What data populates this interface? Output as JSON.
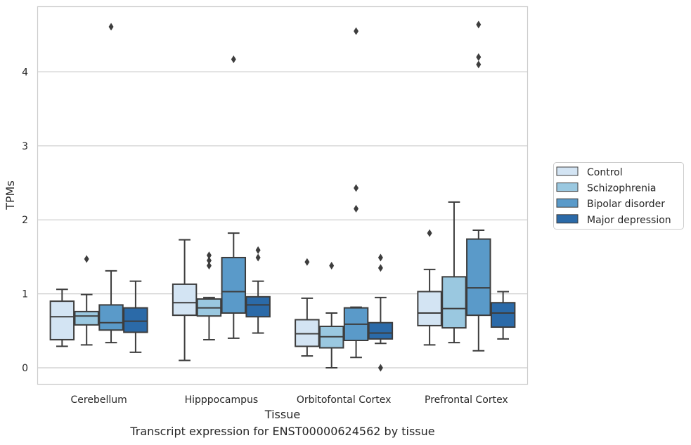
{
  "chart_data": {
    "type": "box",
    "title": "",
    "caption": "Transcript expression for ENST00000624562 by tissue",
    "xlabel": "Tissue",
    "ylabel": "TPMs",
    "ylim": [
      -0.22,
      4.9
    ],
    "yticks": [
      0,
      1,
      2,
      3,
      4
    ],
    "grid": "horizontal",
    "legend_position": "right",
    "categories": [
      "Cerebellum",
      "Hipppocampus",
      "Orbitofontal Cortex",
      "Prefrontal Cortex"
    ],
    "series": [
      {
        "name": "Control",
        "color": "#d3e4f3",
        "boxes": [
          {
            "whislo": 0.29,
            "q1": 0.38,
            "med": 0.69,
            "q3": 0.9,
            "whishi": 1.06,
            "fliers": []
          },
          {
            "whislo": 0.1,
            "q1": 0.71,
            "med": 0.88,
            "q3": 1.13,
            "whishi": 1.73,
            "fliers": []
          },
          {
            "whislo": 0.16,
            "q1": 0.29,
            "med": 0.46,
            "q3": 0.65,
            "whishi": 0.94,
            "fliers": [
              1.43
            ]
          },
          {
            "whislo": 0.31,
            "q1": 0.57,
            "med": 0.74,
            "q3": 1.03,
            "whishi": 1.33,
            "fliers": [
              1.82
            ]
          }
        ]
      },
      {
        "name": "Schizophrenia",
        "color": "#9ac8e0",
        "boxes": [
          {
            "whislo": 0.31,
            "q1": 0.58,
            "med": 0.7,
            "q3": 0.76,
            "whishi": 0.99,
            "fliers": [
              1.47
            ]
          },
          {
            "whislo": 0.38,
            "q1": 0.7,
            "med": 0.81,
            "q3": 0.93,
            "whishi": 0.95,
            "fliers": [
              1.38,
              1.45,
              1.52
            ]
          },
          {
            "whislo": 0.0,
            "q1": 0.27,
            "med": 0.42,
            "q3": 0.56,
            "whishi": 0.74,
            "fliers": [
              1.38
            ]
          },
          {
            "whislo": 0.34,
            "q1": 0.54,
            "med": 0.8,
            "q3": 1.23,
            "whishi": 2.24,
            "fliers": []
          }
        ]
      },
      {
        "name": "Bipolar disorder",
        "color": "#5a9ac9",
        "boxes": [
          {
            "whislo": 0.34,
            "q1": 0.51,
            "med": 0.61,
            "q3": 0.85,
            "whishi": 1.31,
            "fliers": [
              4.61
            ]
          },
          {
            "whislo": 0.4,
            "q1": 0.74,
            "med": 1.03,
            "q3": 1.49,
            "whishi": 1.82,
            "fliers": [
              4.17
            ]
          },
          {
            "whislo": 0.14,
            "q1": 0.37,
            "med": 0.59,
            "q3": 0.81,
            "whishi": 0.82,
            "fliers": [
              2.15,
              2.43,
              4.55
            ]
          },
          {
            "whislo": 0.23,
            "q1": 0.71,
            "med": 1.08,
            "q3": 1.74,
            "whishi": 1.86,
            "fliers": [
              4.1,
              4.2,
              4.64
            ]
          }
        ]
      },
      {
        "name": "Major depression",
        "color": "#2b6aa8",
        "boxes": [
          {
            "whislo": 0.21,
            "q1": 0.48,
            "med": 0.63,
            "q3": 0.81,
            "whishi": 1.17,
            "fliers": []
          },
          {
            "whislo": 0.47,
            "q1": 0.69,
            "med": 0.85,
            "q3": 0.96,
            "whishi": 1.17,
            "fliers": [
              1.49,
              1.59
            ]
          },
          {
            "whislo": 0.33,
            "q1": 0.39,
            "med": 0.47,
            "q3": 0.61,
            "whishi": 0.95,
            "fliers": [
              0.0,
              1.35,
              1.49
            ]
          },
          {
            "whislo": 0.39,
            "q1": 0.55,
            "med": 0.74,
            "q3": 0.88,
            "whishi": 1.03,
            "fliers": []
          }
        ]
      }
    ]
  }
}
